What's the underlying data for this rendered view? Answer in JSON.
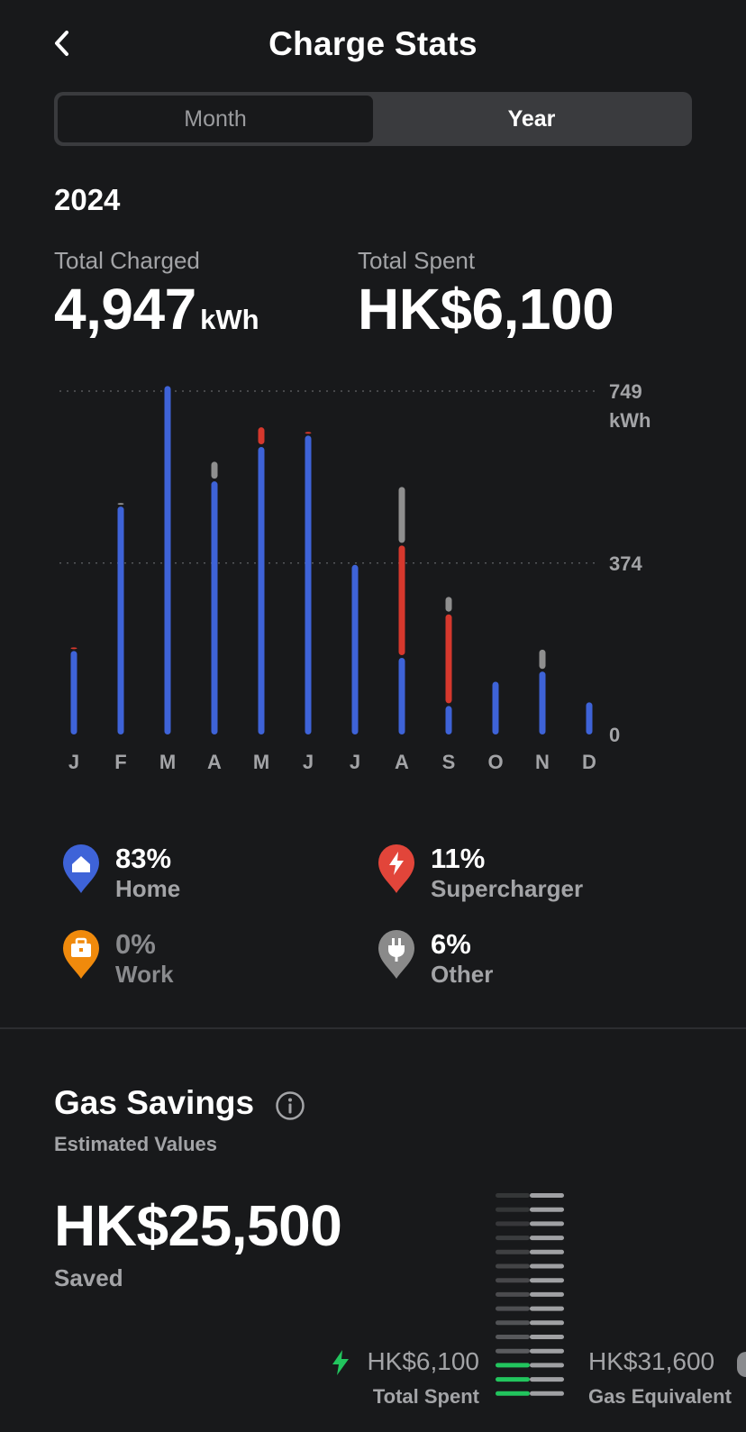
{
  "header": {
    "title": "Charge Stats"
  },
  "segmented": {
    "month": "Month",
    "year": "Year",
    "selected": "Year"
  },
  "period": {
    "year": "2024"
  },
  "summary": {
    "total_charged_label": "Total Charged",
    "total_charged_value": "4,947",
    "total_charged_unit": "kWh",
    "total_spent_label": "Total Spent",
    "total_spent_value": "HK$6,100"
  },
  "chart_data": {
    "type": "bar",
    "stacked": true,
    "categories": [
      "J",
      "F",
      "M",
      "A",
      "M",
      "J",
      "J",
      "A",
      "S",
      "O",
      "N",
      "D"
    ],
    "series": [
      {
        "name": "Home",
        "color": "#3e63d8",
        "values": [
          185,
          500,
          760,
          555,
          630,
          655,
          370,
          170,
          65,
          115,
          140,
          70
        ]
      },
      {
        "name": "Supercharger",
        "color": "#d6382d",
        "values": [
          5,
          0,
          0,
          0,
          40,
          5,
          0,
          245,
          200,
          0,
          0,
          0
        ]
      },
      {
        "name": "Other",
        "color": "#8f8f8f",
        "values": [
          0,
          5,
          0,
          40,
          0,
          0,
          0,
          125,
          35,
          0,
          45,
          0
        ]
      }
    ],
    "ylim": [
      0,
      749
    ],
    "y_ticks": [
      "0",
      "374",
      "749"
    ],
    "y_unit": "kWh",
    "gridlines": [
      374,
      749
    ]
  },
  "legend": [
    {
      "pct": "83%",
      "name": "Home",
      "icon": "home-pin-icon",
      "color": "#3e63d8"
    },
    {
      "pct": "11%",
      "name": "Supercharger",
      "icon": "supercharger-pin-icon",
      "color": "#e2453a"
    },
    {
      "pct": "0%",
      "name": "Work",
      "icon": "work-pin-icon",
      "color": "#f08a0c"
    },
    {
      "pct": "6%",
      "name": "Other",
      "icon": "other-pin-icon",
      "color": "#8a8a8a"
    }
  ],
  "gas_savings": {
    "title": "Gas Savings",
    "subtitle": "Estimated Values",
    "saved_amount": "HK$25,500",
    "saved_label": "Saved",
    "total_spent_value": "HK$6,100",
    "total_spent_label": "Total Spent",
    "gas_equivalent_value": "HK$31,600",
    "gas_equivalent_label": "Gas Equivalent",
    "spent_fraction": 0.19
  }
}
